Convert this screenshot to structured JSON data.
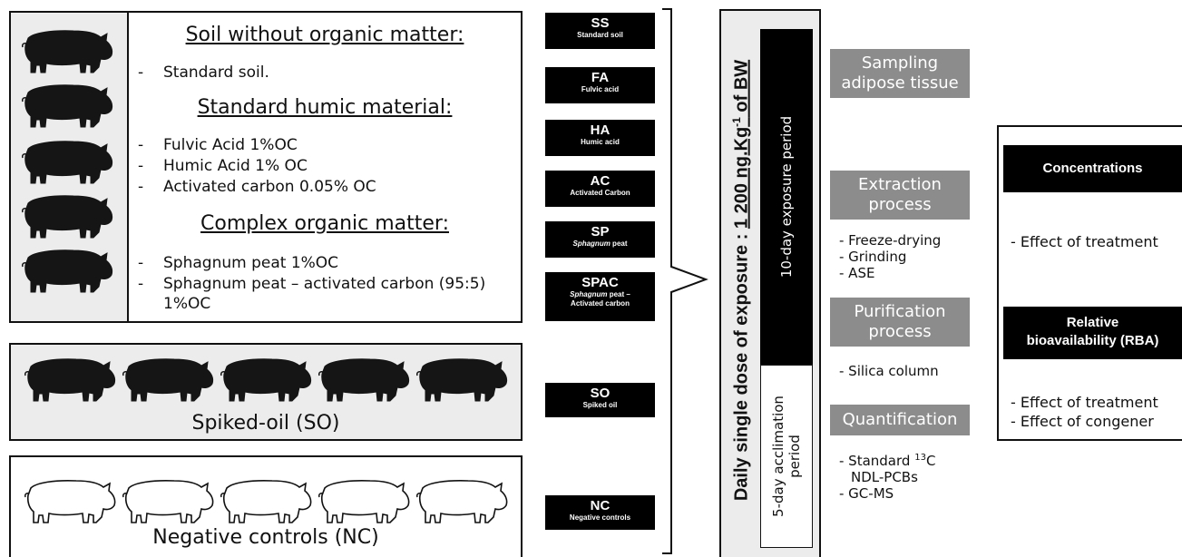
{
  "pigs": {
    "treated_group_icon": "black-pig-icon",
    "negative_group_icon": "white-pig-icon"
  },
  "treatments_panel": {
    "heading1": "Soil without organic matter:",
    "item1": "Standard soil.",
    "heading2": "Standard humic material:",
    "item2": "Fulvic Acid 1%OC",
    "item3": "Humic Acid 1% OC",
    "item4": "Activated carbon 0.05% OC",
    "heading3": "Complex organic matter:",
    "item5": "Sphagnum peat 1%OC",
    "item6": "Sphagnum peat – activated carbon (95:5)",
    "item6b": "1%OC"
  },
  "so_panel": {
    "label": "Spiked-oil (SO)"
  },
  "nc_panel": {
    "label": "Negative controls (NC)"
  },
  "codes": [
    {
      "code": "SS",
      "name": "Standard soil"
    },
    {
      "code": "FA",
      "name": "Fulvic acid"
    },
    {
      "code": "HA",
      "name": "Humic acid"
    },
    {
      "code": "AC",
      "name": "Activated Carbon"
    },
    {
      "code": "SP",
      "name_italic": "Sphagnum",
      "name_rest": " peat"
    },
    {
      "code": "SPAC",
      "name_italic": "Sphagnum",
      "name_rest": " peat –",
      "name_line2": "Activated carbon"
    },
    {
      "code": "SO",
      "name": "Spiked oil"
    },
    {
      "code": "NC",
      "name": "Negative controls"
    }
  ],
  "exposure": {
    "dose_prefix": "Daily single dose of exposure : ",
    "dose_value": "1 200 ng.Kg",
    "dose_exp": "-1",
    "dose_suffix": " of BW",
    "exposure_period": "10-day exposure period",
    "acclimation_line1": "5-day acclimation",
    "acclimation_line2": "period"
  },
  "process": {
    "sampling_l1": "Sampling",
    "sampling_l2": "adipose tissue",
    "extraction_l1": "Extraction",
    "extraction_l2": "process",
    "extraction_steps": [
      "- Freeze-drying",
      "- Grinding",
      "- ASE"
    ],
    "purification_l1": "Purification",
    "purification_l2": "process",
    "purification_steps": [
      "- Silica column"
    ],
    "quantification": "Quantification",
    "quant_prefix": "- Standard ",
    "quant_sup": "13",
    "quant_suffix": "C",
    "quant_line2": "NDL-PCBs",
    "quant_line3": "- GC-MS"
  },
  "results": {
    "concentrations": "Concentrations",
    "conc_effect": "- Effect of treatment",
    "rba_l1": "Relative",
    "rba_l2": "bioavailability (RBA)",
    "rba_effect1": "- Effect of treatment",
    "rba_effect2": "- Effect of congener"
  }
}
